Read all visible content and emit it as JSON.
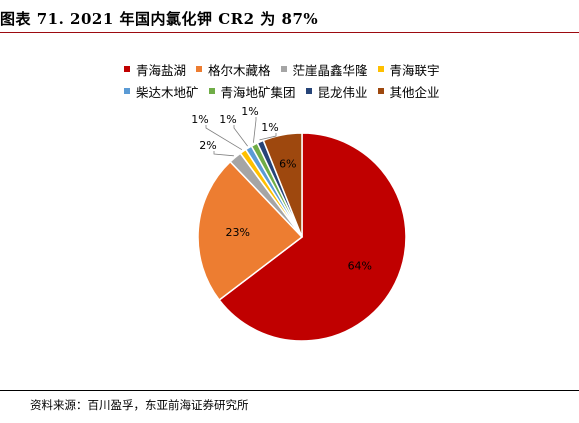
{
  "title": "图表 71. 2021 年国内氯化钾 CR2 为 87%",
  "source": "资料来源：百川盈孚，东亚前海证券研究所",
  "chart_data": {
    "type": "pie",
    "title": "",
    "legend_position": "top",
    "start_angle_deg": 0,
    "direction": "clockwise",
    "slices": [
      {
        "name": "青海盐湖",
        "value": 64,
        "label": "64%",
        "color": "#c00000"
      },
      {
        "name": "格尔木藏格",
        "value": 23,
        "label": "23%",
        "color": "#ed7d31"
      },
      {
        "name": "茫崖晶鑫华隆",
        "value": 2,
        "label": "2%",
        "color": "#a5a5a5"
      },
      {
        "name": "青海联宇",
        "value": 1,
        "label": "1%",
        "color": "#ffc000"
      },
      {
        "name": "柴达木地矿",
        "value": 1,
        "label": "1%",
        "color": "#5b9bd5"
      },
      {
        "name": "青海地矿集团",
        "value": 1,
        "label": "1%",
        "color": "#70ad47"
      },
      {
        "name": "昆龙伟业",
        "value": 1,
        "label": "1%",
        "color": "#264478"
      },
      {
        "name": "其他企业",
        "value": 6,
        "label": "6%",
        "color": "#9e480e"
      }
    ]
  }
}
